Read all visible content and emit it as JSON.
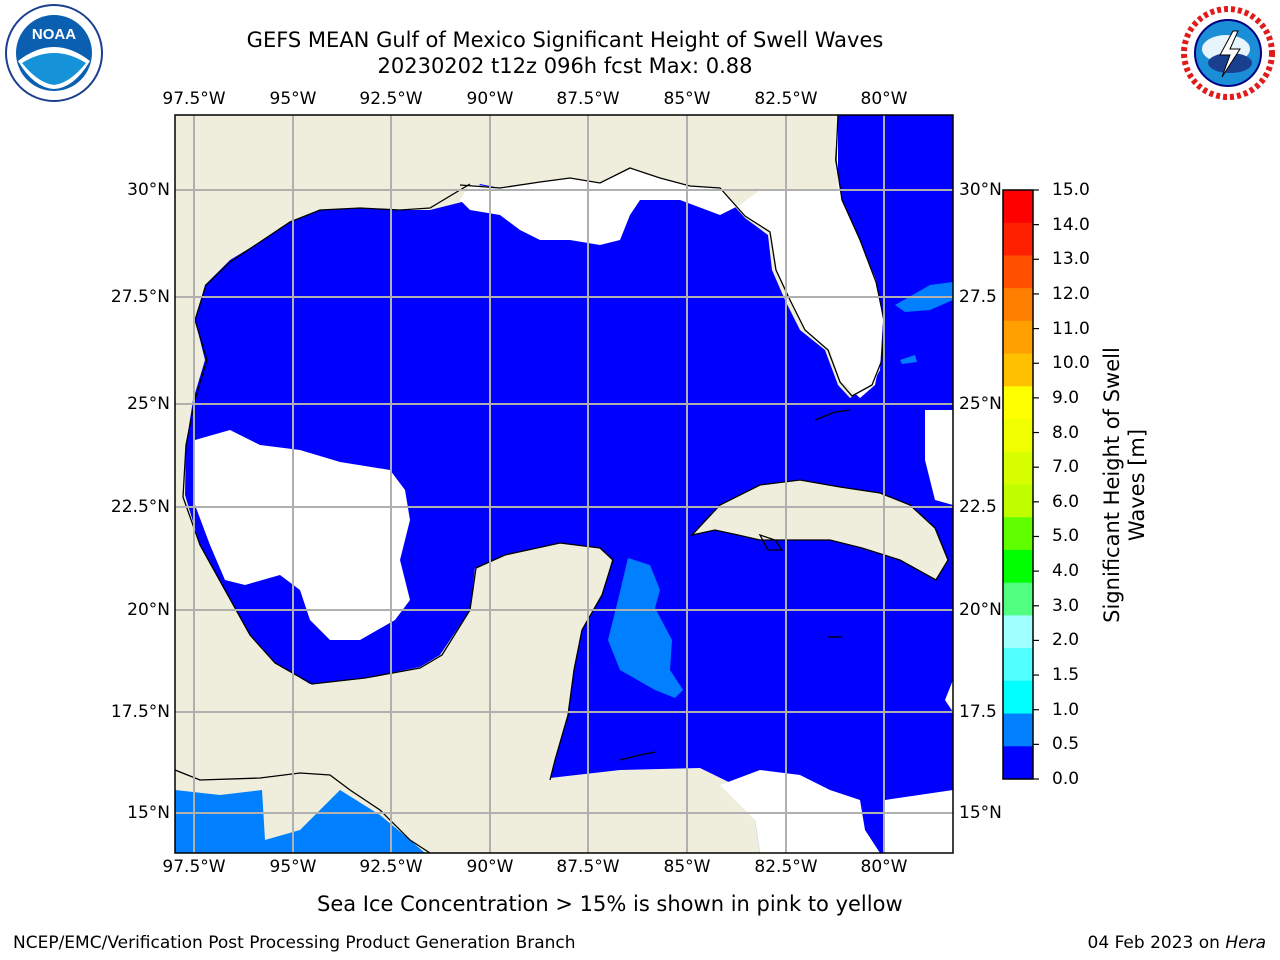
{
  "title": {
    "line1": "GEFS MEAN Gulf of Mexico Significant Height of Swell Waves",
    "line2": "20230202 t12z 096h fcst   Max: 0.88"
  },
  "logos": {
    "left": "noaa-logo",
    "left_text": "NOAA",
    "right": "nws-logo"
  },
  "map": {
    "lon_ticks": [
      "97.5°W",
      "95°W",
      "92.5°W",
      "90°W",
      "87.5°W",
      "85°W",
      "82.5°W",
      "80°W"
    ],
    "lat_ticks_left": [
      "30°N",
      "27.5°N",
      "25°N",
      "22.5°N",
      "20°N",
      "17.5°N",
      "15°N"
    ],
    "lat_ticks_right": [
      "30°N",
      "27.5",
      "25°N",
      "22.5",
      "20°N",
      "17.5",
      "15°N"
    ],
    "colors": {
      "land": "#efeedc",
      "swell_0": "#0000ff",
      "swell_05": "#0080ff",
      "no_data": "#ffffff",
      "grid": "#b0b0b0",
      "coast": "#000000"
    }
  },
  "colorbar": {
    "label": "Significant Height of Swell Waves [m]",
    "ticks": [
      "15.0",
      "14.0",
      "13.0",
      "12.0",
      "11.0",
      "10.0",
      "9.0",
      "8.0",
      "7.0",
      "6.0",
      "5.0",
      "4.0",
      "3.0",
      "2.0",
      "1.5",
      "1.0",
      "0.5",
      "0.0"
    ],
    "colors": [
      "#ff0000",
      "#ff2000",
      "#ff5000",
      "#ff8000",
      "#ffa000",
      "#ffc000",
      "#ffff00",
      "#f0ff00",
      "#d8ff00",
      "#c0ff00",
      "#60ff00",
      "#00ff00",
      "#50ff80",
      "#a0ffff",
      "#50ffff",
      "#00ffff",
      "#0080ff",
      "#0000ff"
    ]
  },
  "note": "Sea Ice Concentration > 15% is shown in pink to yellow",
  "footer": {
    "left": "NCEP/EMC/Verification Post Processing Product Generation Branch",
    "date": "04 Feb 2023 on ",
    "machine": "Hera"
  }
}
